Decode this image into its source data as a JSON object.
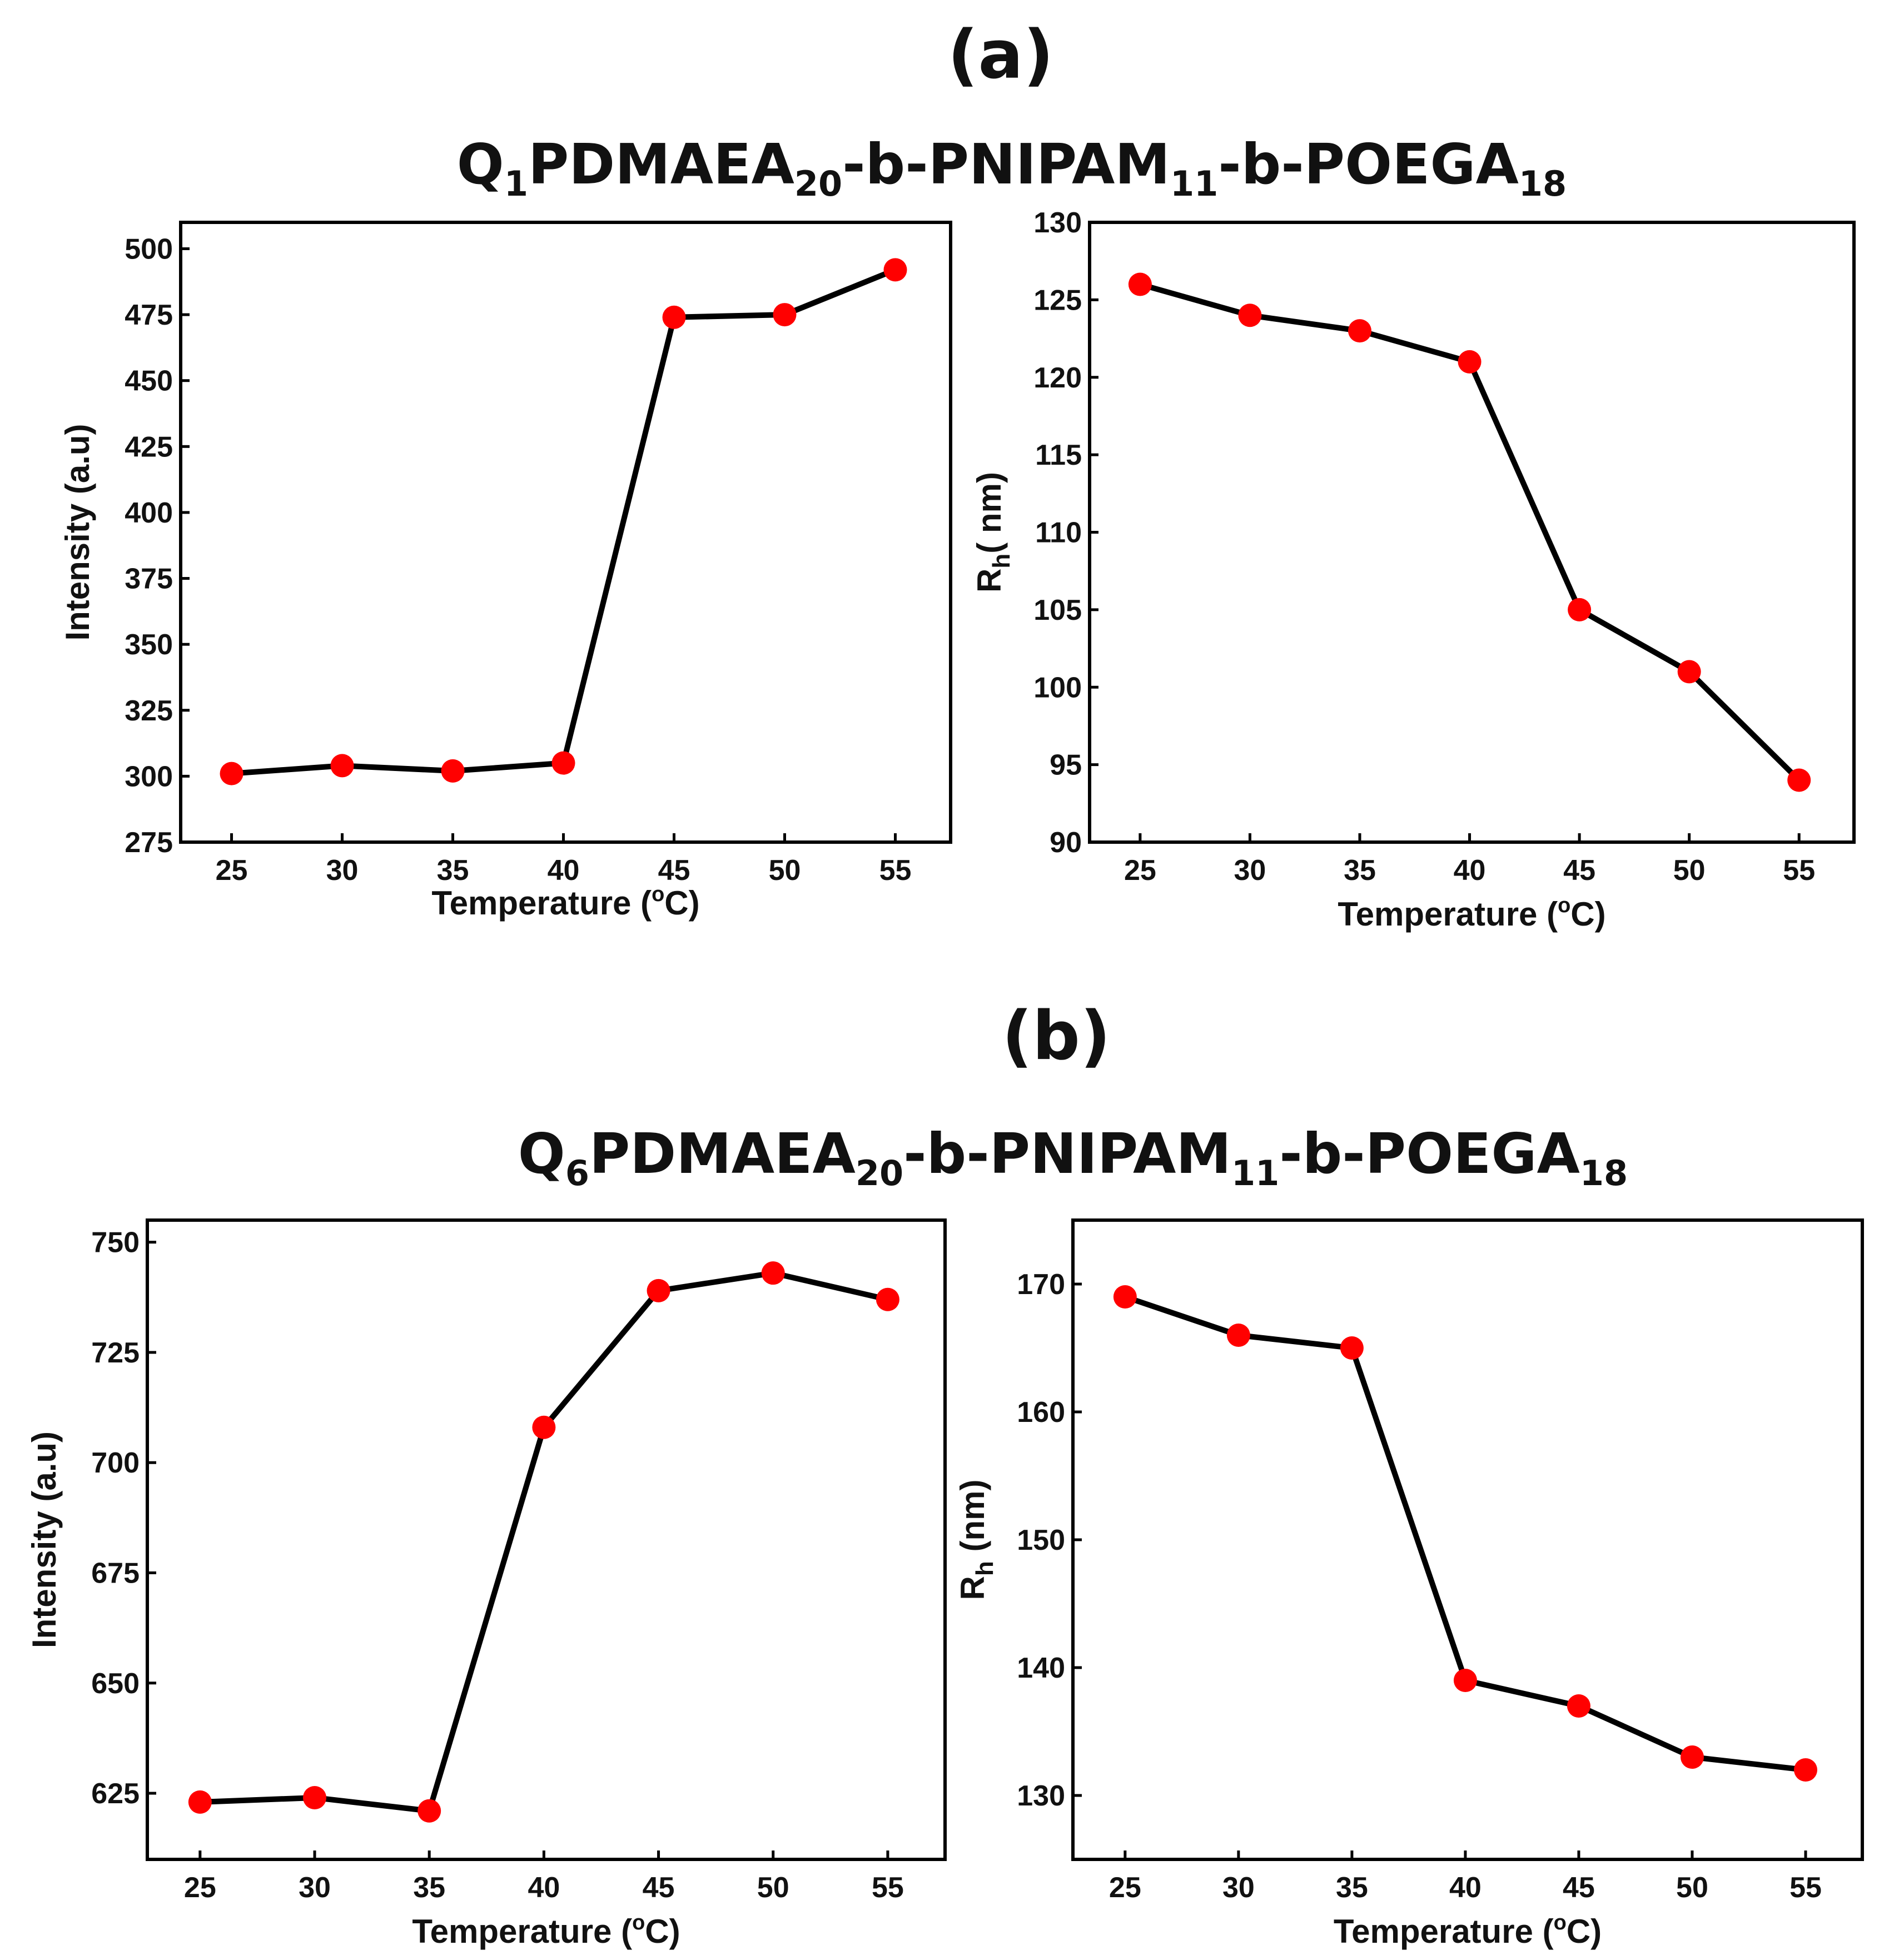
{
  "panels": [
    {
      "label": "(a)",
      "title": {
        "Q": "Q",
        "qsub": "1",
        "p1": "PDMAEA",
        "s1": "20",
        "p2": "-b-PNIPAM",
        "s2": "11",
        "p3": "-b-POEGA",
        "s3": "18"
      }
    },
    {
      "label": "(b)",
      "title": {
        "Q": "Q",
        "qsub": "6",
        "p1": "PDMAEA",
        "s1": "20",
        "p2": "-b-PNIPAM",
        "s2": "11",
        "p3": "-b-POEGA",
        "s3": "18"
      }
    }
  ],
  "chart_data": [
    {
      "type": "line",
      "panel": "(a)",
      "x": [
        25,
        30,
        35,
        40,
        45,
        50,
        55
      ],
      "values": [
        301,
        304,
        302,
        305,
        474,
        475,
        492
      ],
      "xlabel": {
        "main": "Temperature (",
        "sup": "o",
        "unit": "C)"
      },
      "ylabel": "Intensity (a.u)",
      "xticks": [
        25,
        30,
        35,
        40,
        45,
        50,
        55
      ],
      "yticks": [
        275,
        300,
        325,
        350,
        375,
        400,
        425,
        450,
        475,
        500
      ],
      "xlim": [
        22.7,
        57.5
      ],
      "ylim": [
        275,
        510
      ],
      "line_color": "#000000",
      "marker_color": "#ff0000"
    },
    {
      "type": "line",
      "panel": "(a)",
      "x": [
        25,
        30,
        35,
        40,
        45,
        50,
        55
      ],
      "values": [
        126,
        124,
        123,
        121,
        105,
        101,
        94
      ],
      "xlabel": {
        "main": "Temperature (",
        "sup": "o",
        "unit": "C)"
      },
      "ylabel": {
        "R": "R",
        "sub": "h",
        "rest": "( nm)"
      },
      "xticks": [
        25,
        30,
        35,
        40,
        45,
        50,
        55
      ],
      "yticks": [
        90,
        95,
        100,
        105,
        110,
        115,
        120,
        125,
        130
      ],
      "xlim": [
        22.7,
        57.5
      ],
      "ylim": [
        90,
        130
      ],
      "line_color": "#000000",
      "marker_color": "#ff0000"
    },
    {
      "type": "line",
      "panel": "(b)",
      "x": [
        25,
        30,
        35,
        40,
        45,
        50,
        55
      ],
      "values": [
        623,
        624,
        621,
        708,
        739,
        743,
        737
      ],
      "xlabel": {
        "main": "Temperature (",
        "sup": "o",
        "unit": "C)"
      },
      "ylabel": "Intensity (a.u)",
      "xticks": [
        25,
        30,
        35,
        40,
        45,
        50,
        55
      ],
      "yticks": [
        625,
        650,
        675,
        700,
        725,
        750
      ],
      "xlim": [
        22.7,
        57.5
      ],
      "ylim": [
        610,
        755
      ],
      "line_color": "#000000",
      "marker_color": "#ff0000"
    },
    {
      "type": "line",
      "panel": "(b)",
      "x": [
        25,
        30,
        35,
        40,
        45,
        50,
        55
      ],
      "values": [
        169,
        166,
        165,
        139,
        137,
        133,
        132
      ],
      "xlabel": {
        "main": "Temperature  (",
        "sup": "o",
        "unit": "C)"
      },
      "ylabel": {
        "R": "R",
        "sub": "h",
        "rest": " (nm)"
      },
      "xticks": [
        25,
        30,
        35,
        40,
        45,
        50,
        55
      ],
      "yticks": [
        130,
        140,
        150,
        160,
        170
      ],
      "xlim": [
        22.7,
        57.5
      ],
      "ylim": [
        125,
        175
      ],
      "line_color": "#000000",
      "marker_color": "#ff0000"
    }
  ]
}
